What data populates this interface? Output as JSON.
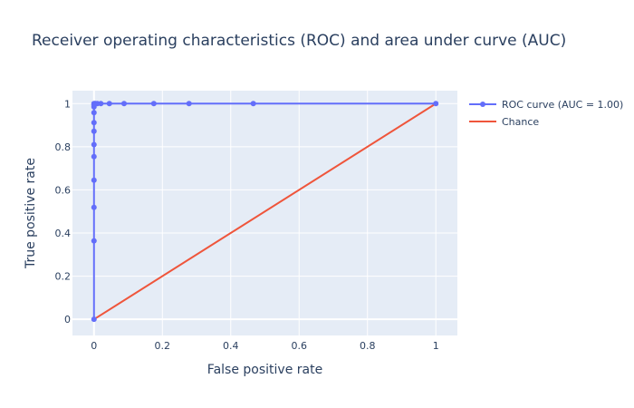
{
  "chart_data": {
    "type": "line",
    "title": "Receiver operating characteristics (ROC) and area under curve (AUC)",
    "xlabel": "False positive rate",
    "ylabel": "True positive rate",
    "xlim": [
      -0.063,
      1.063
    ],
    "ylim": [
      -0.075,
      1.06
    ],
    "x_ticks": [
      0,
      0.2,
      0.4,
      0.6,
      0.8,
      1
    ],
    "x_tick_labels": [
      "0",
      "0.2",
      "0.4",
      "0.6",
      "0.8",
      "1"
    ],
    "y_ticks": [
      0,
      0.2,
      0.4,
      0.6,
      0.8,
      1
    ],
    "y_tick_labels": [
      "0",
      "0.2",
      "0.4",
      "0.6",
      "0.8",
      "1"
    ],
    "grid": true,
    "legend_position": "top-right",
    "series": [
      {
        "name": "ROC curve (AUC = 1.00)",
        "color": "#636efa",
        "mode": "lines+markers",
        "x": [
          0,
          0,
          0,
          0,
          0,
          0,
          0,
          0,
          0,
          0,
          0,
          0,
          0.002,
          0.005,
          0.01,
          0.02,
          0.045,
          0.088,
          0.175,
          0.278,
          0.466,
          1
        ],
        "y": [
          0,
          0.364,
          0.519,
          0.645,
          0.754,
          0.81,
          0.872,
          0.912,
          0.958,
          0.985,
          0.994,
          1,
          1,
          1,
          1,
          1,
          1,
          1,
          1,
          1,
          1,
          1
        ]
      },
      {
        "name": "Chance",
        "color": "#ef553b",
        "mode": "lines",
        "x": [
          0,
          1
        ],
        "y": [
          0,
          1
        ]
      }
    ]
  }
}
